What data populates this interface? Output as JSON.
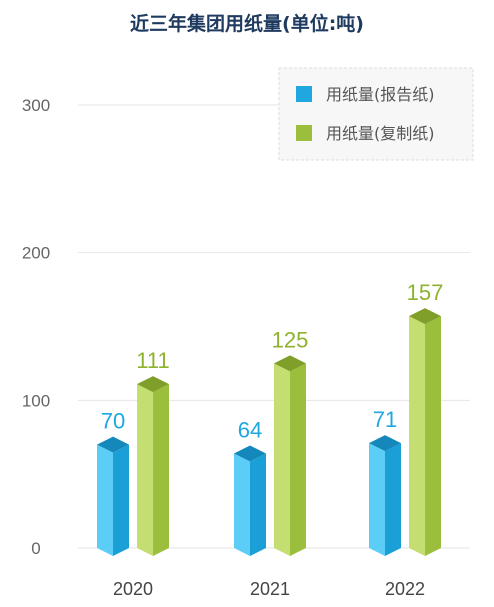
{
  "chart_data": {
    "type": "bar",
    "title": "近三年集团用纸量(单位:吨)",
    "categories": [
      "2020",
      "2021",
      "2022"
    ],
    "series": [
      {
        "name": "用纸量(报告纸)",
        "values": [
          70,
          64,
          71
        ],
        "color": "#1ea7e0"
      },
      {
        "name": "用纸量(复制纸)",
        "values": [
          111,
          125,
          157
        ],
        "color": "#9bbf3c"
      }
    ],
    "yticks": [
      0,
      100,
      200,
      300
    ],
    "ylim": [
      0,
      300
    ],
    "grid": true,
    "legend_position": "top-right",
    "data_label_colors": [
      "#1ea7e0",
      "#8db32e"
    ]
  }
}
